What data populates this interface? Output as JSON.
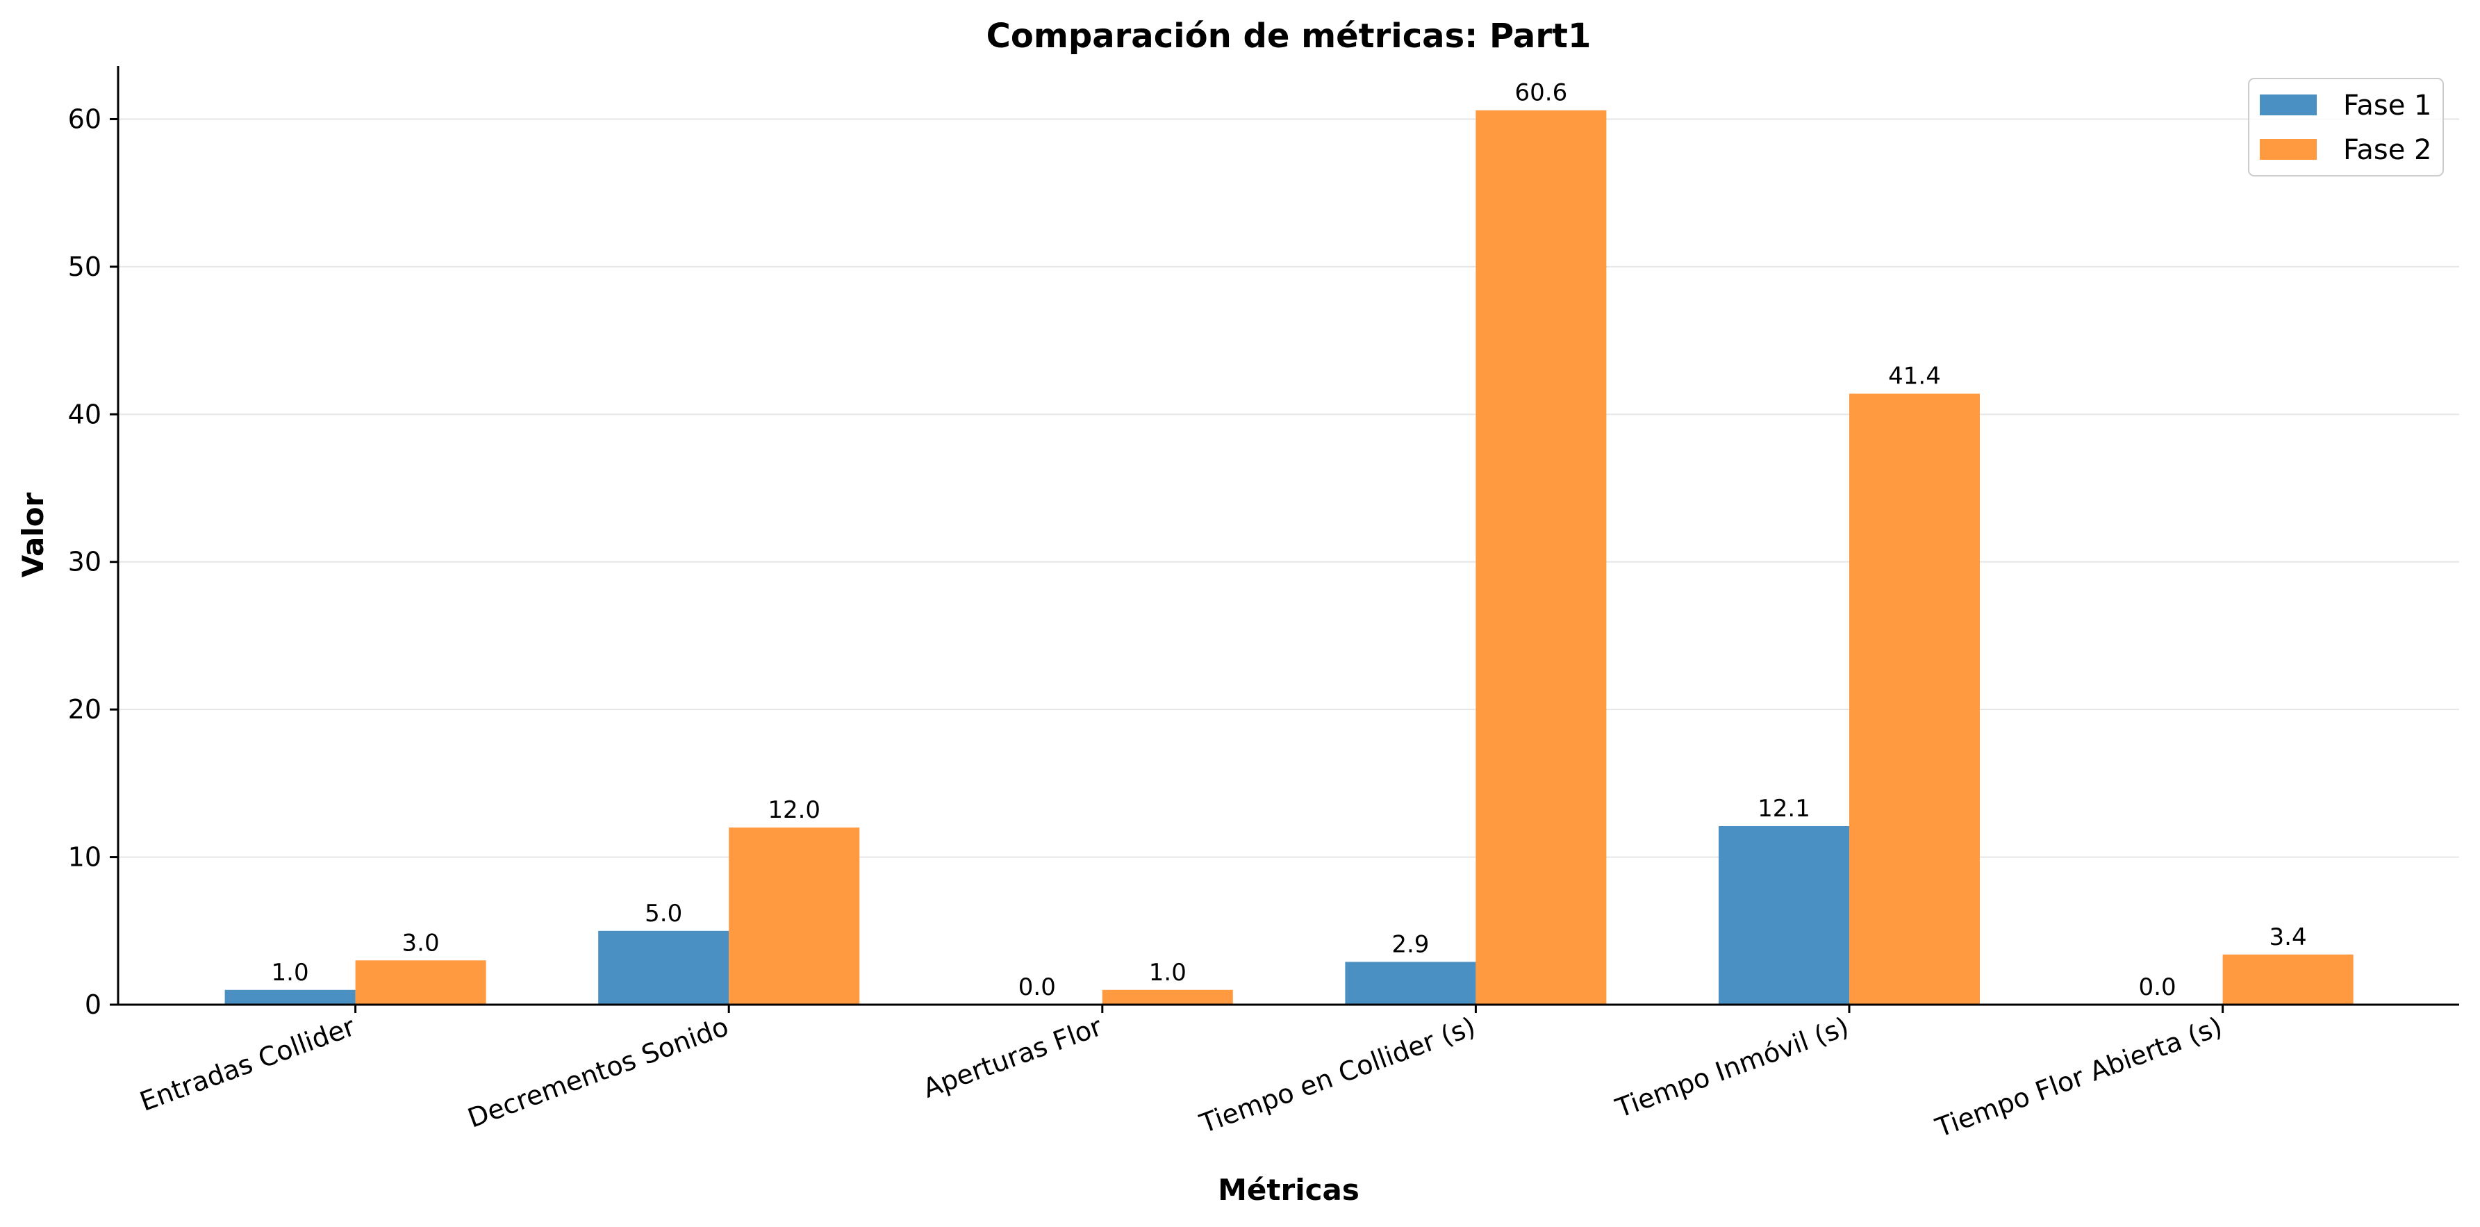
{
  "chart_data": {
    "type": "bar",
    "title": "Comparación de métricas: Part1",
    "xlabel": "Métricas",
    "ylabel": "Valor",
    "categories": [
      "Entradas Collider",
      "Decrementos Sonido",
      "Aperturas Flor",
      "Tiempo en Collider (s)",
      "Tiempo Inmóvil (s)",
      "Tiempo Flor Abierta (s)"
    ],
    "series": [
      {
        "name": "Fase 1",
        "color": "#4a90c2",
        "values": [
          1.0,
          5.0,
          0.0,
          2.9,
          12.1,
          0.0
        ],
        "labels": [
          "1.0",
          "5.0",
          "0.0",
          "2.9",
          "12.1",
          "0.0"
        ]
      },
      {
        "name": "Fase 2",
        "color": "#ff9a40",
        "values": [
          3.0,
          12.0,
          1.0,
          60.6,
          41.4,
          3.4
        ],
        "labels": [
          "3.0",
          "12.0",
          "1.0",
          "60.6",
          "41.4",
          "3.4"
        ]
      }
    ],
    "ylim": [
      0,
      63.6
    ],
    "yticks": [
      0,
      10,
      20,
      30,
      40,
      50,
      60
    ],
    "ytick_labels": [
      "0",
      "10",
      "20",
      "30",
      "40",
      "50",
      "60"
    ],
    "grid": "y",
    "legend_position": "top-right"
  }
}
